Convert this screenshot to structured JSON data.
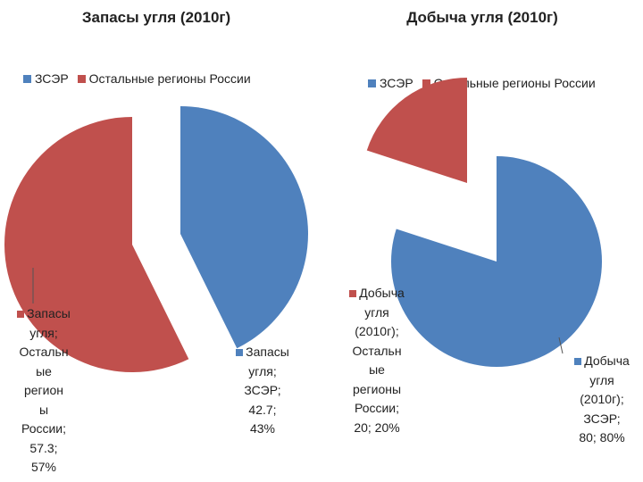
{
  "colors": {
    "zser": "#4f81bd",
    "other": "#c0504d"
  },
  "chart_data": [
    {
      "type": "pie",
      "title": "Запасы угля (2010г)",
      "legend": {
        "placement": "top",
        "entries": [
          "ЗСЭР",
          "Остальные регионы России"
        ]
      },
      "slices": [
        {
          "name": "ЗСЭР",
          "value": 42.7,
          "percent": 43,
          "label_lines": [
            "Запасы",
            "угля;",
            "ЗСЭР;",
            "42.7;",
            "43%"
          ]
        },
        {
          "name": "Остальные регионы России",
          "value": 57.3,
          "percent": 57,
          "label_lines": [
            "Запасы",
            "угля;",
            "Остальн",
            "ые",
            "регион",
            "ы",
            "России;",
            "57.3;",
            "57%"
          ]
        }
      ]
    },
    {
      "type": "pie",
      "title": "Добыча угля (2010г)",
      "legend": {
        "placement": "top",
        "entries": [
          "ЗСЭР",
          "Остальные регионы России"
        ]
      },
      "slices": [
        {
          "name": "ЗСЭР",
          "value": 80,
          "percent": 80,
          "label_lines": [
            "Добыча",
            "угля",
            "(2010г);",
            "ЗСЭР;",
            "80; 80%"
          ]
        },
        {
          "name": "Остальные регионы России",
          "value": 20,
          "percent": 20,
          "label_lines": [
            "Добыча",
            "угля",
            "(2010г);",
            "Остальн",
            "ые",
            "регионы",
            "России;",
            "20; 20%"
          ]
        }
      ]
    }
  ]
}
